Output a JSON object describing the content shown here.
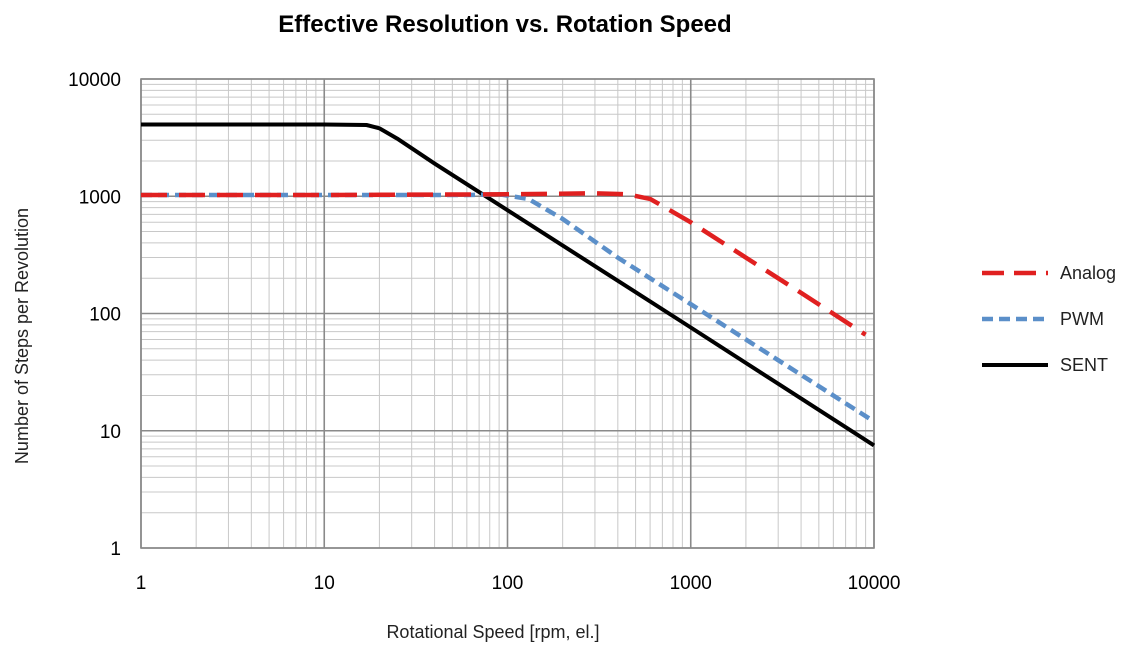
{
  "chart_data": {
    "type": "line",
    "title": "Effective Resolution vs. Rotation Speed",
    "xlabel": "Rotational Speed [rpm, el.]",
    "ylabel": "Number of Steps per Revolution",
    "xscale": "log",
    "yscale": "log",
    "xlim": [
      1,
      10000
    ],
    "ylim": [
      1,
      10000
    ],
    "x_ticks": [
      "1",
      "10",
      "100",
      "1000",
      "10000"
    ],
    "y_ticks": [
      "1",
      "10",
      "100",
      "1000",
      "10000"
    ],
    "grid": true,
    "legend_position": "right",
    "series": [
      {
        "name": "Analog",
        "color": "#e02020",
        "style": "long-dash",
        "x": [
          1,
          10,
          100,
          300,
          450,
          600,
          1000,
          2000,
          4000,
          9000
        ],
        "y": [
          1024,
          1024,
          1040,
          1060,
          1040,
          950,
          600,
          300,
          150,
          66
        ]
      },
      {
        "name": "PWM",
        "color": "#5b8fc9",
        "style": "short-dash",
        "x": [
          1,
          10,
          60,
          90,
          130,
          200,
          400,
          1000,
          3000,
          10000
        ],
        "y": [
          1024,
          1024,
          1024,
          1040,
          950,
          640,
          300,
          120,
          40,
          12
        ]
      },
      {
        "name": "SENT",
        "color": "#000000",
        "style": "solid",
        "x": [
          1,
          10,
          17,
          20,
          25,
          40,
          100,
          1000,
          10000
        ],
        "y": [
          4096,
          4096,
          4050,
          3800,
          3100,
          1900,
          760,
          76,
          7.5
        ]
      }
    ]
  }
}
